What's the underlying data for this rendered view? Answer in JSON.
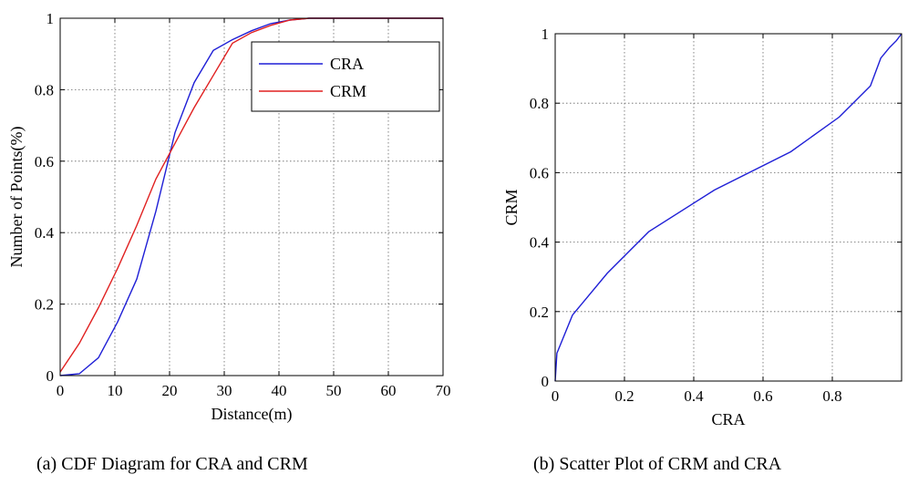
{
  "chart_data": [
    {
      "type": "line",
      "xlabel": "Distance(m)",
      "ylabel": "Number of Points(%)",
      "xlim": [
        0,
        70
      ],
      "ylim": [
        0,
        1
      ],
      "xticks": [
        "0",
        "10",
        "20",
        "30",
        "40",
        "50",
        "60",
        "70"
      ],
      "yticks": [
        "0",
        "0.2",
        "0.4",
        "0.6",
        "0.8",
        "1"
      ],
      "grid": true,
      "legend_position": "top-right",
      "series": [
        {
          "name": "CRA",
          "color": "#1f1fd6",
          "points": [
            [
              0,
              0.0
            ],
            [
              3.5,
              0.005
            ],
            [
              7,
              0.05
            ],
            [
              10.5,
              0.15
            ],
            [
              14,
              0.27
            ],
            [
              17.5,
              0.46
            ],
            [
              21,
              0.68
            ],
            [
              24.5,
              0.82
            ],
            [
              28,
              0.91
            ],
            [
              31.5,
              0.94
            ],
            [
              35,
              0.965
            ],
            [
              38.5,
              0.985
            ],
            [
              42,
              0.995
            ],
            [
              45.5,
              1.0
            ],
            [
              70,
              1.0
            ]
          ]
        },
        {
          "name": "CRM",
          "color": "#e02020",
          "points": [
            [
              0,
              0.01
            ],
            [
              3.5,
              0.09
            ],
            [
              7,
              0.19
            ],
            [
              10.5,
              0.3
            ],
            [
              14,
              0.42
            ],
            [
              17.5,
              0.55
            ],
            [
              21,
              0.65
            ],
            [
              24.5,
              0.75
            ],
            [
              28,
              0.84
            ],
            [
              31.5,
              0.93
            ],
            [
              35,
              0.96
            ],
            [
              38.5,
              0.98
            ],
            [
              42,
              0.995
            ],
            [
              45.5,
              1.0
            ],
            [
              70,
              1.0
            ]
          ]
        }
      ],
      "caption": "(a)  CDF Diagram for CRA and CRM"
    },
    {
      "type": "line",
      "xlabel": "CRA",
      "ylabel": "CRM",
      "xlim": [
        0,
        1
      ],
      "ylim": [
        0,
        1
      ],
      "xticks": [
        "0",
        "0.2",
        "0.4",
        "0.6",
        "0.8"
      ],
      "yticks": [
        "0",
        "0.2",
        "0.4",
        "0.6",
        "0.8",
        "1"
      ],
      "grid": true,
      "series": [
        {
          "color": "#1f1fd6",
          "points": [
            [
              0,
              0.0
            ],
            [
              0.005,
              0.08
            ],
            [
              0.05,
              0.19
            ],
            [
              0.15,
              0.31
            ],
            [
              0.27,
              0.43
            ],
            [
              0.46,
              0.55
            ],
            [
              0.68,
              0.66
            ],
            [
              0.82,
              0.76
            ],
            [
              0.91,
              0.85
            ],
            [
              0.94,
              0.93
            ],
            [
              0.965,
              0.96
            ],
            [
              0.985,
              0.98
            ],
            [
              1.0,
              1.0
            ]
          ]
        }
      ],
      "caption": "(b)  Scatter Plot of CRM and CRA"
    }
  ]
}
